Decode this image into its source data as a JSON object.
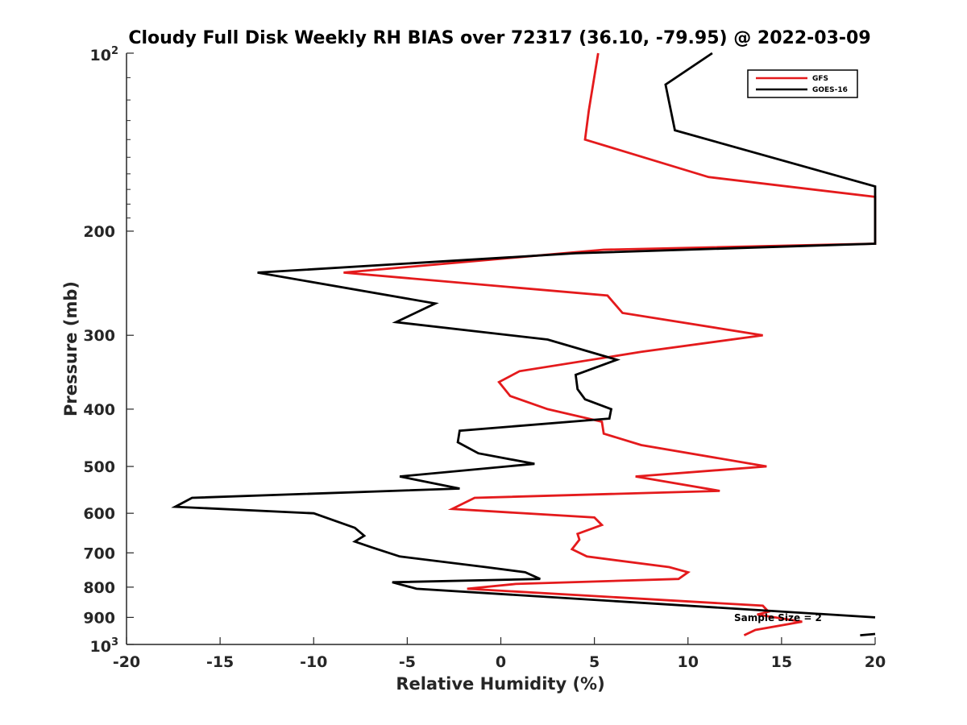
{
  "chart_data": {
    "type": "line",
    "title": "Cloudy Full Disk Weekly RH BIAS over 72317 (36.10, -79.95) @ 2022-03-09",
    "xlabel": "Relative Humidity (%)",
    "ylabel": "Pressure (mb)",
    "xlim": [
      -20,
      20
    ],
    "ylim": [
      100,
      1000
    ],
    "y_scale": "log",
    "y_reversed": true,
    "xticks": [
      -20,
      -15,
      -10,
      -5,
      0,
      5,
      10,
      15,
      20
    ],
    "xtick_labels": [
      "-20",
      "-15",
      "-10",
      "-5",
      "0",
      "5",
      "10",
      "15",
      "20"
    ],
    "yticks": [
      {
        "value": 100,
        "label": "10",
        "sup": "2"
      },
      {
        "value": 200,
        "label": "200"
      },
      {
        "value": 300,
        "label": "300"
      },
      {
        "value": 400,
        "label": "400"
      },
      {
        "value": 500,
        "label": "500"
      },
      {
        "value": 600,
        "label": "600"
      },
      {
        "value": 700,
        "label": "700"
      },
      {
        "value": 800,
        "label": "800"
      },
      {
        "value": 900,
        "label": "900"
      },
      {
        "value": 1000,
        "label": "10",
        "sup": "3"
      }
    ],
    "legend_position": "top-right",
    "annotation": "Sample Size = 2",
    "series": [
      {
        "name": "GFS",
        "color": "#e41a1c",
        "points": [
          [
            5.2,
            100
          ],
          [
            4.7,
            125
          ],
          [
            4.5,
            140
          ],
          [
            11.1,
            162
          ],
          [
            20,
            175
          ],
          [
            20,
            210
          ],
          [
            5.5,
            215
          ],
          [
            -8.4,
            235
          ],
          [
            5.7,
            257
          ],
          [
            6.5,
            275
          ],
          [
            14,
            300
          ],
          [
            7.5,
            320
          ],
          [
            1,
            345
          ],
          [
            -0.1,
            360
          ],
          [
            0.5,
            380
          ],
          [
            2.5,
            400
          ],
          [
            5.4,
            420
          ],
          [
            5.5,
            440
          ],
          [
            7.5,
            460
          ],
          [
            14.2,
            500
          ],
          [
            7.2,
            520
          ],
          [
            11.7,
            550
          ],
          [
            -1.4,
            565
          ],
          [
            -2.6,
            590
          ],
          [
            5,
            610
          ],
          [
            5.4,
            628
          ],
          [
            4.1,
            650
          ],
          [
            4.2,
            665
          ],
          [
            3.8,
            690
          ],
          [
            4.6,
            710
          ],
          [
            9,
            740
          ],
          [
            10,
            755
          ],
          [
            9.5,
            775
          ],
          [
            0.8,
            790
          ],
          [
            -1.8,
            805
          ],
          [
            14,
            860
          ],
          [
            14.3,
            880
          ],
          [
            13.7,
            890
          ],
          [
            16.1,
            915
          ],
          [
            13.6,
            945
          ],
          [
            13,
            965
          ]
        ]
      },
      {
        "name": "GOES-16",
        "color": "#000000",
        "points": [
          [
            11.3,
            100
          ],
          [
            8.8,
            113
          ],
          [
            9.3,
            135
          ],
          [
            17.6,
            160
          ],
          [
            20,
            168
          ],
          [
            20,
            210
          ],
          [
            4,
            218
          ],
          [
            -13,
            235
          ],
          [
            -3.5,
            265
          ],
          [
            -5.6,
            285
          ],
          [
            2.5,
            305
          ],
          [
            6.2,
            330
          ],
          [
            4,
            350
          ],
          [
            4.1,
            370
          ],
          [
            4.5,
            385
          ],
          [
            5.9,
            400
          ],
          [
            5.8,
            415
          ],
          [
            -2.2,
            435
          ],
          [
            -2.3,
            455
          ],
          [
            -1.2,
            475
          ],
          [
            1.8,
            495
          ],
          [
            -5.4,
            520
          ],
          [
            -2.2,
            545
          ],
          [
            -16.5,
            565
          ],
          [
            -17.4,
            585
          ],
          [
            -10,
            600
          ],
          [
            -7.8,
            635
          ],
          [
            -7.3,
            655
          ],
          [
            -7.8,
            670
          ],
          [
            -6.9,
            685
          ],
          [
            -5.4,
            710
          ],
          [
            -0.8,
            740
          ],
          [
            1.3,
            755
          ],
          [
            2.1,
            775
          ],
          [
            -5.8,
            785
          ],
          [
            -4.5,
            805
          ],
          [
            20,
            900
          ]
        ]
      }
    ],
    "extra_segment": {
      "series": "GOES-16",
      "points": [
        [
          19.2,
          965
        ],
        [
          20,
          960
        ]
      ]
    }
  }
}
